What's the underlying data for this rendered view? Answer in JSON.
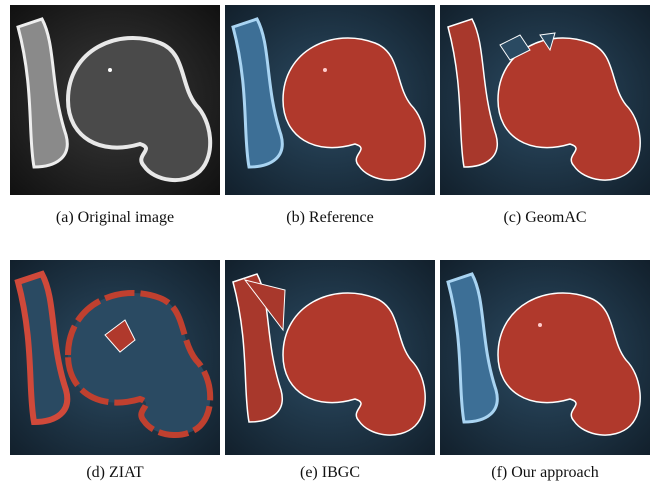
{
  "panels": [
    {
      "caption": "(a) Original image"
    },
    {
      "caption": "(b) Reference"
    },
    {
      "caption": "(c) GeomAC"
    },
    {
      "caption": "(d) ZIAT"
    },
    {
      "caption": "(e) IBGC"
    },
    {
      "caption": "(f) Our approach"
    }
  ]
}
